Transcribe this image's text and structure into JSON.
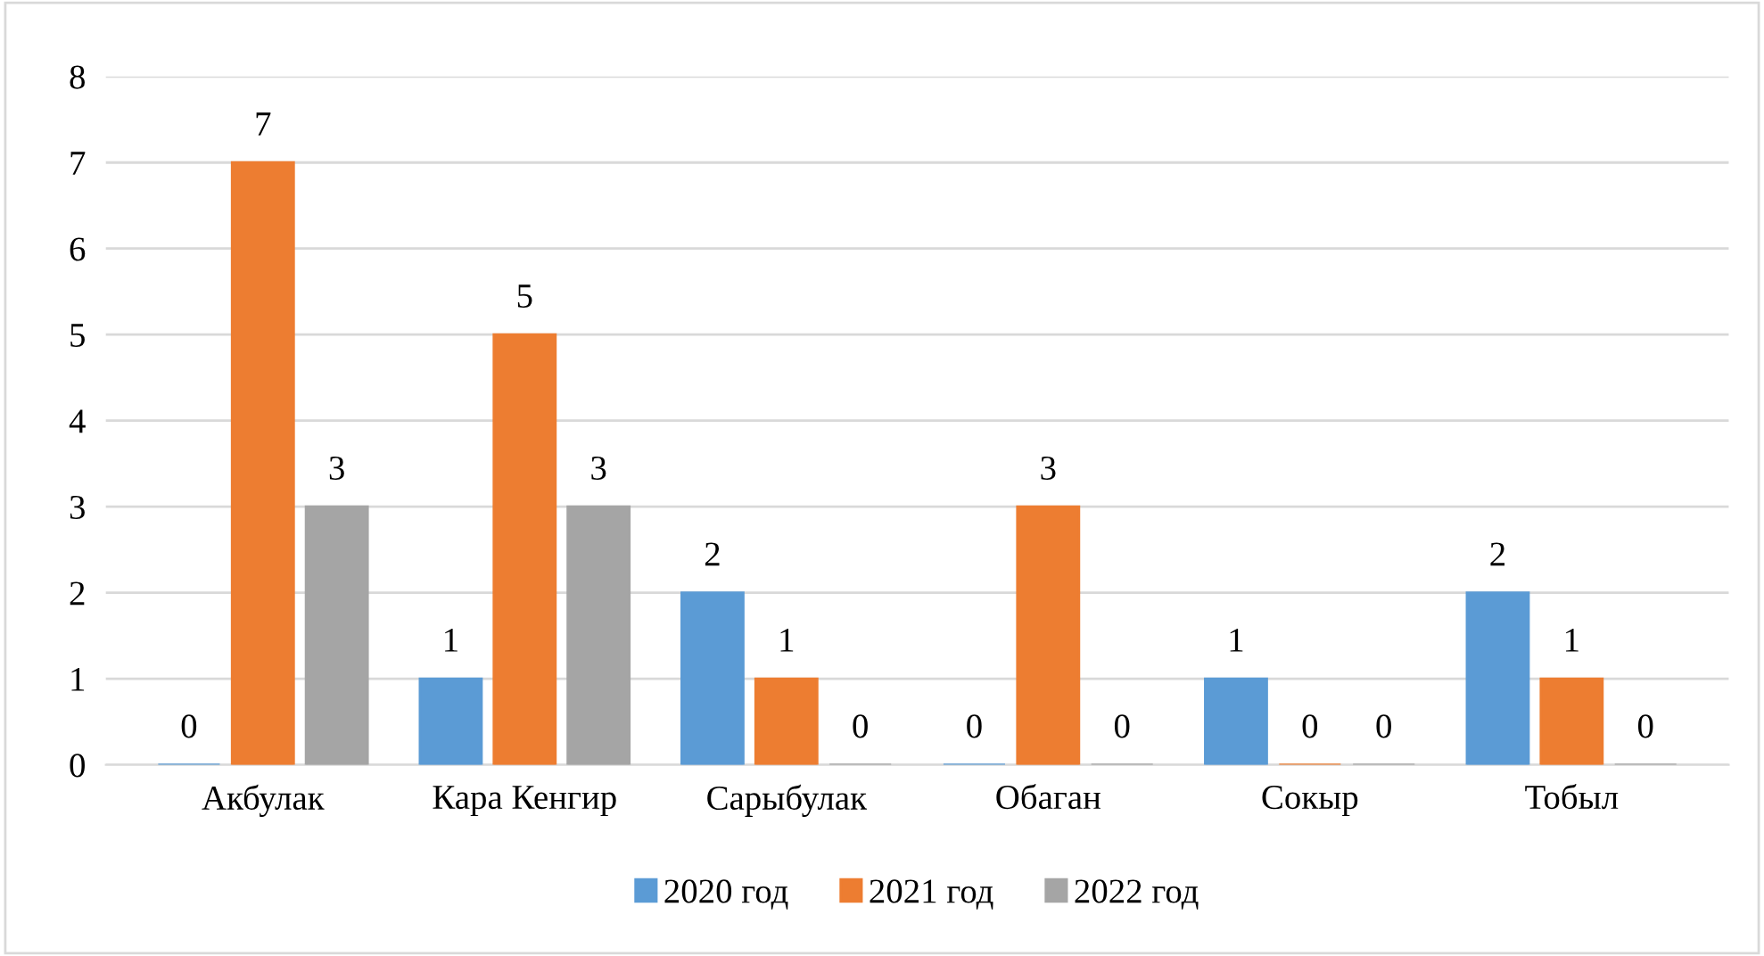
{
  "chart_data": {
    "type": "bar",
    "categories": [
      "Акбулак",
      "Кара Кенгир",
      "Сарыбулак",
      "Обаган",
      "Сокыр",
      "Тобыл"
    ],
    "series": [
      {
        "name": "2020 год",
        "color": "#5b9bd5",
        "values": [
          0,
          1,
          2,
          0,
          1,
          2
        ]
      },
      {
        "name": "2021 год",
        "color": "#ed7d31",
        "values": [
          7,
          5,
          1,
          3,
          0,
          1
        ]
      },
      {
        "name": "2022 год",
        "color": "#a5a5a5",
        "values": [
          3,
          3,
          0,
          0,
          0,
          0
        ]
      }
    ],
    "ylim": [
      0,
      8
    ],
    "yticks": [
      0,
      1,
      2,
      3,
      4,
      5,
      6,
      7,
      8
    ],
    "grid": "y",
    "legend": "bottom",
    "data_labels": true
  }
}
